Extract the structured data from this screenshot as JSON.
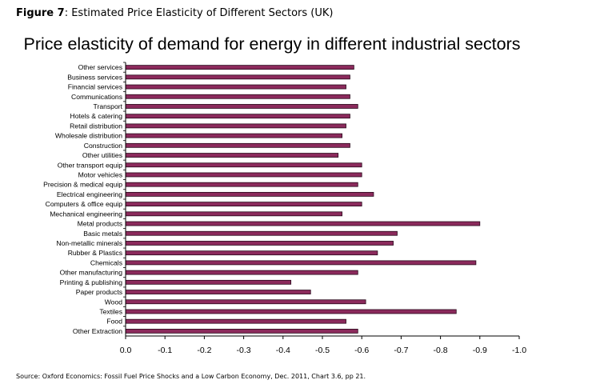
{
  "caption": {
    "prefix": "Figure 7",
    "text": ": Estimated Price Elasticity of Different Sectors (UK)"
  },
  "source": "Source: Oxford Economics: Fossil Fuel Price Shocks and a Low Carbon Economy, Dec. 2011, Chart 3.6, pp 21.",
  "colors": {
    "bar_fill": "#8b2a5c",
    "bar_stroke": "#2a0a1c",
    "axis": "#000000"
  },
  "chart_data": {
    "type": "bar",
    "orientation": "horizontal",
    "title": "Price elasticity of demand for energy in different industrial sectors",
    "xlabel": "",
    "ylabel": "",
    "xlim": [
      0.0,
      -1.0
    ],
    "legend": "none",
    "grid": false,
    "x_ticks": [
      "0.0",
      "-0.1",
      "-0.2",
      "-0.3",
      "-0.4",
      "-0.5",
      "-0.6",
      "-0.7",
      "-0.8",
      "-0.9",
      "-1.0"
    ],
    "categories": [
      "Other services",
      "Business services",
      "Financial services",
      "Communications",
      "Transport",
      "Hotels & catering",
      "Retail distribution",
      "Wholesale distribution",
      "Construction",
      "Other utilities",
      "Other transport equip",
      "Motor vehicles",
      "Precision & medical equip",
      "Electrical engineering",
      "Computers & office equip",
      "Mechanical engineering",
      "Metal products",
      "Basic metals",
      "Non-metallic minerals",
      "Rubber & Plastics",
      "Chemicals",
      "Other manufacturing",
      "Printing & publishing",
      "Paper products",
      "Wood",
      "Textiles",
      "Food",
      "Other Extraction"
    ],
    "values": [
      -0.58,
      -0.57,
      -0.56,
      -0.57,
      -0.59,
      -0.57,
      -0.56,
      -0.55,
      -0.57,
      -0.54,
      -0.6,
      -0.6,
      -0.59,
      -0.63,
      -0.6,
      -0.55,
      -0.9,
      -0.69,
      -0.68,
      -0.64,
      -0.89,
      -0.59,
      -0.42,
      -0.47,
      -0.61,
      -0.84,
      -0.56,
      -0.59
    ]
  }
}
